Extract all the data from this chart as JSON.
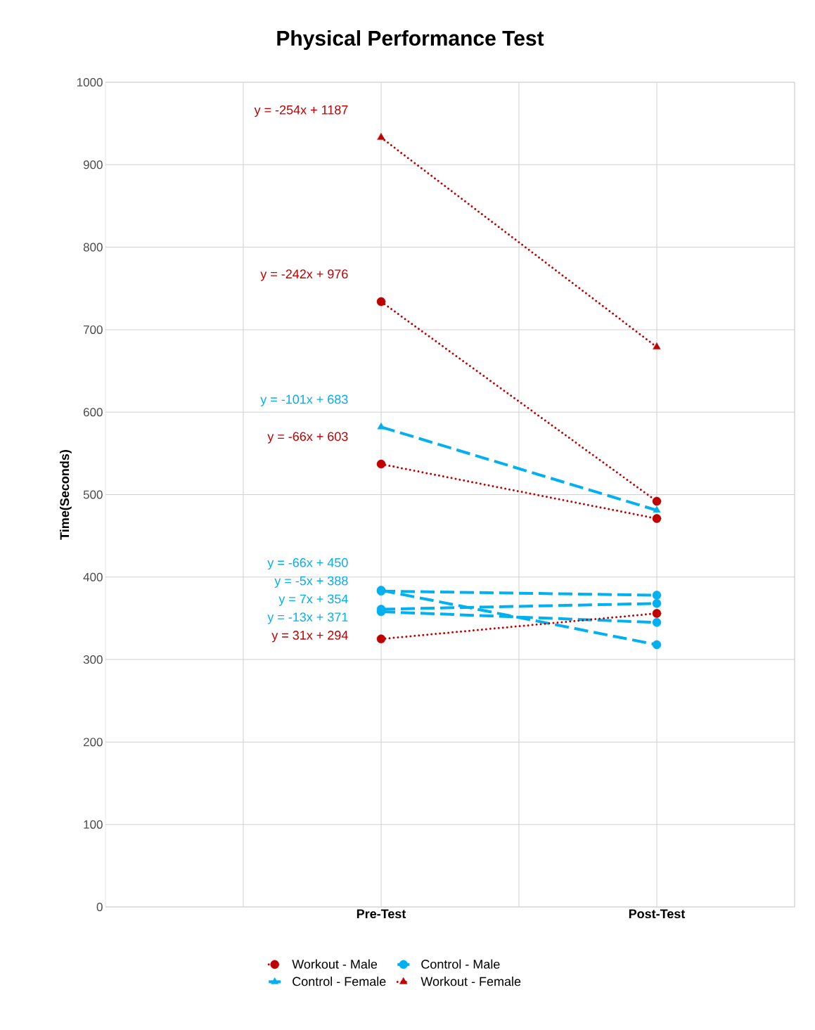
{
  "chart_data": {
    "type": "line",
    "title": "Physical Performance Test",
    "ylabel": "Time(Seconds)",
    "categories": [
      "Pre-Test",
      "Post-Test"
    ],
    "series": [
      {
        "name": "Workout - Male",
        "color": "#c00000",
        "marker": "circle",
        "line_style": "dotted",
        "values": [
          734,
          492
        ]
      },
      {
        "name": "Control - Male",
        "color": "#00b0f0",
        "marker": "circle",
        "line_style": "dashed",
        "values": [
          383,
          378
        ]
      },
      {
        "name": "Control - Female",
        "color": "#00b0f0",
        "marker": "triangle",
        "line_style": "dashed",
        "values": [
          582,
          481
        ]
      },
      {
        "name": "Workout - Female",
        "color": "#c00000",
        "marker": "triangle",
        "line_style": "dotted",
        "values": [
          933,
          679
        ]
      },
      {
        "color": "#c00000",
        "marker": "circle",
        "line_style": "dotted",
        "values": [
          537,
          471
        ]
      },
      {
        "color": "#00b0f0",
        "marker": "circle",
        "line_style": "dashed",
        "values": [
          384,
          318
        ]
      },
      {
        "color": "#00b0f0",
        "marker": "circle",
        "line_style": "dashed",
        "values": [
          361,
          368
        ]
      },
      {
        "color": "#00b0f0",
        "marker": "circle",
        "line_style": "dashed",
        "values": [
          358,
          345
        ]
      },
      {
        "color": "#c00000",
        "marker": "circle",
        "line_style": "dotted",
        "values": [
          325,
          356
        ]
      }
    ],
    "annotations": [
      "y = -242x + 976",
      "y = -5x + 388",
      "y = -101x + 683",
      "y = -254x + 1187",
      "y = -66x + 603",
      "y = -66x + 450",
      "y = 7x + 354",
      "y = -13x + 371",
      "y = 31x + 294"
    ],
    "ylim": [
      0,
      1000
    ],
    "yticks": [
      0,
      100,
      200,
      300,
      400,
      500,
      600,
      700,
      800,
      900,
      1000
    ],
    "grid": true,
    "legend": "bottom"
  }
}
